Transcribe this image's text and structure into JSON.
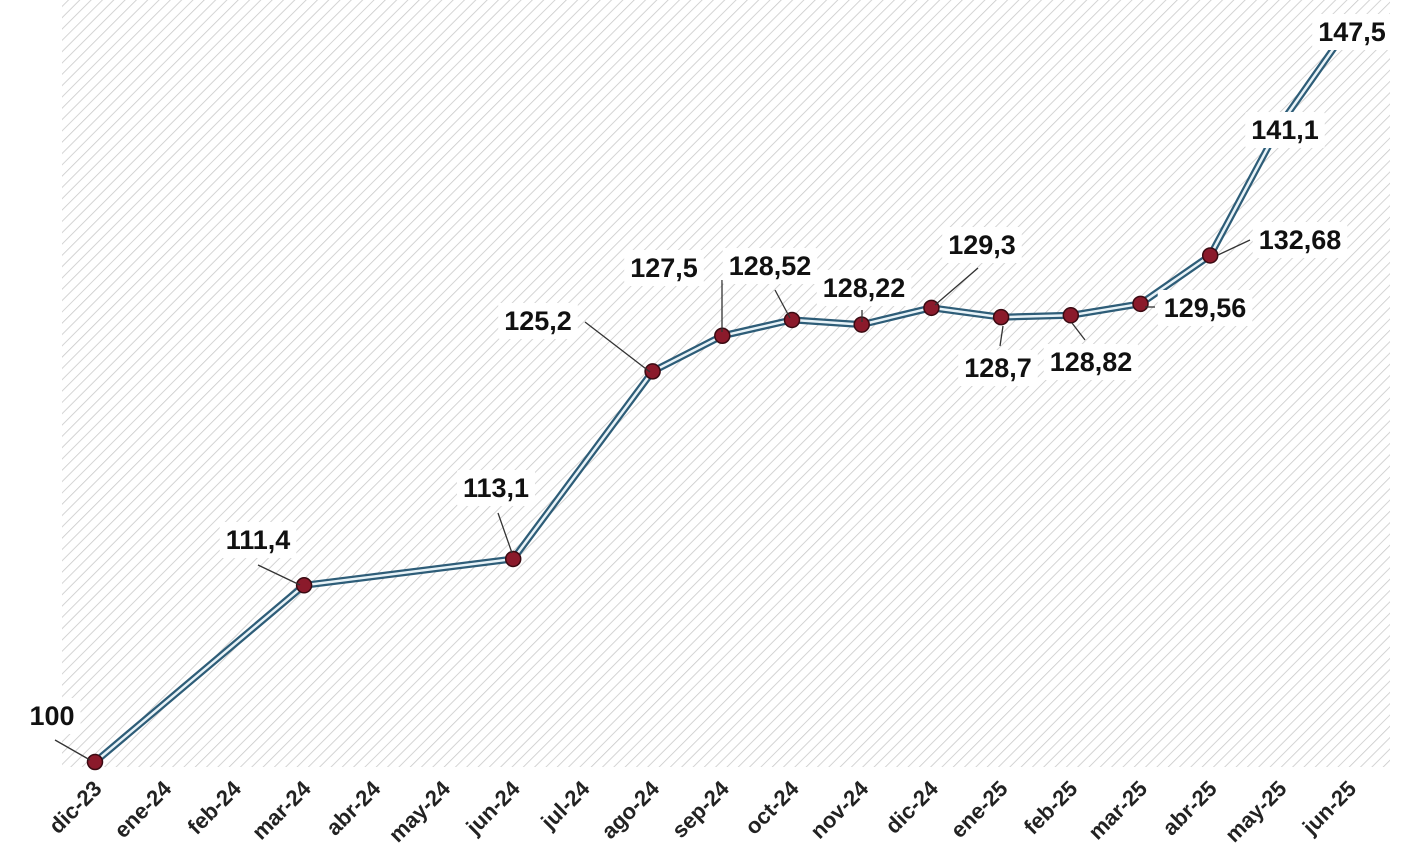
{
  "chart_data": {
    "type": "line",
    "categories": [
      "dic-23",
      "ene-24",
      "feb-24",
      "mar-24",
      "abr-24",
      "may-24",
      "jun-24",
      "jul-24",
      "ago-24",
      "sep-24",
      "oct-24",
      "nov-24",
      "dic-24",
      "ene-25",
      "feb-25",
      "mar-25",
      "abr-25",
      "may-25",
      "jun-25"
    ],
    "points": [
      {
        "x": "dic-23",
        "y": 100,
        "label": "100"
      },
      {
        "x": "mar-24",
        "y": 111.4,
        "label": "111,4"
      },
      {
        "x": "jun-24",
        "y": 113.1,
        "label": "113,1"
      },
      {
        "x": "ago-24",
        "y": 125.2,
        "label": "125,2"
      },
      {
        "x": "sep-24",
        "y": 127.5,
        "label": "127,5"
      },
      {
        "x": "oct-24",
        "y": 128.52,
        "label": "128,52"
      },
      {
        "x": "nov-24",
        "y": 128.22,
        "label": "128,22"
      },
      {
        "x": "dic-24",
        "y": 129.3,
        "label": "129,3"
      },
      {
        "x": "ene-25",
        "y": 128.7,
        "label": "128,7"
      },
      {
        "x": "feb-25",
        "y": 128.82,
        "label": "128,82"
      },
      {
        "x": "mar-25",
        "y": 129.56,
        "label": "129,56"
      },
      {
        "x": "abr-25",
        "y": 132.68,
        "label": "132,68"
      },
      {
        "x": "may-25",
        "y": 141.1,
        "label": "141,1"
      },
      {
        "x": "jun-25",
        "y": 147.5,
        "label": "147,5"
      }
    ],
    "markers": [
      "dic-23",
      "mar-24",
      "jun-24",
      "ago-24",
      "sep-24",
      "oct-24",
      "nov-24",
      "dic-24",
      "ene-25",
      "feb-25",
      "mar-25",
      "abr-25"
    ],
    "title": "",
    "xlabel": "",
    "ylabel": "",
    "ylim": [
      100,
      148
    ],
    "grid": false,
    "legend": "none",
    "colors": {
      "line": "#2e5d78",
      "line_inner": "#e8f3f8",
      "marker": "#8b1a2b",
      "hatch": "#c9c9c9"
    }
  }
}
